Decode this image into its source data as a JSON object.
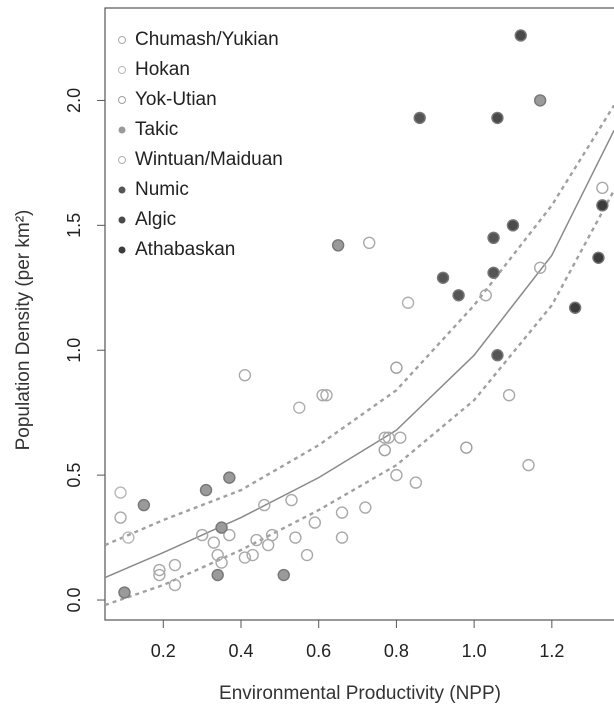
{
  "chart_data": {
    "type": "scatter",
    "xlabel": "Environmental Productivity (NPP)",
    "ylabel": "Population Density (per km²)",
    "xlim": [
      0.05,
      1.36
    ],
    "ylim": [
      -0.08,
      2.37
    ],
    "xticks": [
      0.2,
      0.4,
      0.6,
      0.8,
      {
        "value": 1,
        "label": "1.0"
      },
      1.2
    ],
    "yticks": [
      {
        "value": 0,
        "label": "0.0"
      },
      0.5,
      {
        "value": 1,
        "label": "1.0"
      },
      1.5,
      {
        "value": 2,
        "label": "2.0"
      }
    ],
    "legend": "top-left",
    "series": [
      {
        "name": "Chumash/Yukian",
        "color": "#a9a9a9",
        "filled": false,
        "x": [
          0.09,
          0.19,
          0.19,
          0.23,
          0.23,
          0.3,
          0.33,
          0.34,
          0.35,
          0.37,
          0.41,
          0.41,
          0.43,
          0.44,
          0.46,
          0.47,
          0.48,
          0.53,
          0.54,
          0.57,
          0.59,
          0.61,
          0.62,
          0.66,
          0.66,
          0.72,
          0.73,
          0.77,
          0.78,
          0.8,
          0.81,
          0.85,
          1.03,
          1.09,
          1.14,
          1.17,
          1.33
        ],
        "values": [
          0.33,
          0.12,
          0.1,
          0.14,
          0.06,
          0.26,
          0.23,
          0.18,
          0.15,
          0.26,
          0.9,
          0.17,
          0.18,
          0.24,
          0.38,
          0.22,
          0.26,
          0.4,
          0.25,
          0.18,
          0.31,
          0.82,
          0.82,
          0.35,
          0.25,
          0.37,
          1.43,
          0.65,
          0.65,
          0.5,
          0.65,
          0.47,
          1.22,
          0.82,
          0.54,
          1.33,
          1.65
        ]
      },
      {
        "name": "Hokan",
        "color": "#b8b8b8",
        "filled": false,
        "x": [
          0.09,
          0.11
        ],
        "values": [
          0.43,
          0.25
        ]
      },
      {
        "name": "Yok-Utian",
        "color": "#9f9f9f",
        "filled": false,
        "x": [
          0.77,
          0.8,
          0.98
        ],
        "values": [
          0.6,
          0.93,
          0.61
        ]
      },
      {
        "name": "Takic",
        "color": "#9a9a9a",
        "filled": true,
        "x": [
          0.1,
          0.15,
          0.31,
          0.34,
          0.35,
          0.37,
          0.51,
          0.65,
          1.17
        ],
        "values": [
          0.03,
          0.38,
          0.44,
          0.1,
          0.29,
          0.49,
          0.1,
          1.42,
          2.0
        ]
      },
      {
        "name": "Wintuan/Maiduan",
        "color": "#b0b0b0",
        "filled": false,
        "x": [
          0.55,
          0.83
        ],
        "values": [
          0.77,
          1.19
        ]
      },
      {
        "name": "Numic",
        "color": "#555555",
        "filled": true,
        "x": [
          0.86,
          0.92,
          0.96,
          1.05,
          1.05,
          1.06
        ],
        "values": [
          1.93,
          1.29,
          1.22,
          1.45,
          1.31,
          0.98
        ]
      },
      {
        "name": "Algic",
        "color": "#4a4a4a",
        "filled": true,
        "x": [
          1.06,
          1.1,
          1.12
        ],
        "values": [
          1.93,
          1.5,
          2.26
        ]
      },
      {
        "name": "Athabaskan",
        "color": "#3c3c3c",
        "filled": true,
        "x": [
          1.26,
          1.32,
          1.33
        ],
        "values": [
          1.17,
          1.37,
          1.58
        ]
      }
    ],
    "curves": [
      {
        "color": "#8a8a8a",
        "dashed": false,
        "x": [
          0.05,
          0.2,
          0.4,
          0.6,
          0.8,
          1.0,
          1.2,
          1.36
        ],
        "values": [
          0.09,
          0.19,
          0.33,
          0.49,
          0.68,
          0.98,
          1.38,
          1.88
        ]
      },
      {
        "color": "#a0a0a0",
        "dashed": true,
        "x": [
          0.05,
          0.2,
          0.4,
          0.6,
          0.8,
          1.0,
          1.2,
          1.36
        ],
        "values": [
          0.22,
          0.32,
          0.44,
          0.62,
          0.84,
          1.18,
          1.58,
          1.98
        ]
      },
      {
        "color": "#a0a0a0",
        "dashed": true,
        "x": [
          0.05,
          0.2,
          0.4,
          0.6,
          0.8,
          1.0,
          1.2,
          1.36
        ],
        "values": [
          -0.02,
          0.06,
          0.2,
          0.36,
          0.54,
          0.8,
          1.18,
          1.64
        ]
      }
    ]
  }
}
